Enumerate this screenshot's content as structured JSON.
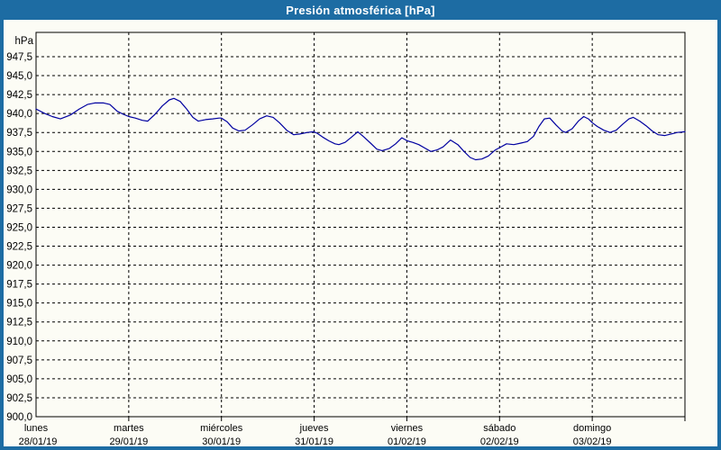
{
  "window": {
    "title": "Presión atmosférica [hPa]"
  },
  "colors": {
    "frame_blue": "#1d6ca3",
    "title_text": "#ffffff",
    "chart_background": "#fcfcf5",
    "line_navy": "#0000a0",
    "grid_black": "#000000",
    "text_black": "#000000"
  },
  "chart_data": {
    "type": "line",
    "title": "Presión atmosférica [hPa]",
    "xlabel": "",
    "ylabel": "hPa",
    "grid": {
      "style": "dashed",
      "horizontal": true,
      "vertical": true
    },
    "legend": "none",
    "y_axis": {
      "unit_label": "hPa",
      "min": 900,
      "max": 947.5,
      "tick_step": 2.5,
      "decimal_separator": ",",
      "tick_labels": [
        "947,5",
        "945,0",
        "942,5",
        "940,0",
        "937,5",
        "935,0",
        "932,5",
        "930,0",
        "927,5",
        "925,0",
        "922,5",
        "920,0",
        "917,5",
        "915,0",
        "912,5",
        "910,0",
        "907,5",
        "905,0",
        "902,5",
        "900,0"
      ]
    },
    "x_axis": {
      "range_hours": [
        0,
        168
      ],
      "days": [
        {
          "name": "lunes",
          "date": "28/01/19"
        },
        {
          "name": "martes",
          "date": "29/01/19"
        },
        {
          "name": "miércoles",
          "date": "30/01/19"
        },
        {
          "name": "jueves",
          "date": "31/01/19"
        },
        {
          "name": "viernes",
          "date": "01/02/19"
        },
        {
          "name": "sábado",
          "date": "02/02/19"
        },
        {
          "name": "domingo",
          "date": "03/02/19"
        }
      ]
    },
    "series": [
      {
        "name": "Presión atmosférica",
        "color": "#0000a0",
        "points_hour_hpa": [
          [
            0,
            940.6
          ],
          [
            2.3,
            940.0
          ],
          [
            4.2,
            939.6
          ],
          [
            6.3,
            939.3
          ],
          [
            8.9,
            939.8
          ],
          [
            11.2,
            940.6
          ],
          [
            13.3,
            941.2
          ],
          [
            15.2,
            941.4
          ],
          [
            17.5,
            941.4
          ],
          [
            19.1,
            941.2
          ],
          [
            21.0,
            940.3
          ],
          [
            22.6,
            939.9
          ],
          [
            24.0,
            939.6
          ],
          [
            25.7,
            939.4
          ],
          [
            27.5,
            939.1
          ],
          [
            28.9,
            939.0
          ],
          [
            30.8,
            939.9
          ],
          [
            32.7,
            941.0
          ],
          [
            34.5,
            941.8
          ],
          [
            35.7,
            942.0
          ],
          [
            37.3,
            941.6
          ],
          [
            39.0,
            940.6
          ],
          [
            40.6,
            939.5
          ],
          [
            42.0,
            939.0
          ],
          [
            43.9,
            939.2
          ],
          [
            45.7,
            939.3
          ],
          [
            47.4,
            939.4
          ],
          [
            48.0,
            939.4
          ],
          [
            49.5,
            938.9
          ],
          [
            50.9,
            938.1
          ],
          [
            52.5,
            937.7
          ],
          [
            54.1,
            937.8
          ],
          [
            56.0,
            938.5
          ],
          [
            57.9,
            939.3
          ],
          [
            59.7,
            939.7
          ],
          [
            61.4,
            939.5
          ],
          [
            63.0,
            938.8
          ],
          [
            64.9,
            937.8
          ],
          [
            66.7,
            937.2
          ],
          [
            68.3,
            937.3
          ],
          [
            70.2,
            937.5
          ],
          [
            71.9,
            937.6
          ],
          [
            72.8,
            937.4
          ],
          [
            74.2,
            936.9
          ],
          [
            75.8,
            936.4
          ],
          [
            77.4,
            936.0
          ],
          [
            78.4,
            935.9
          ],
          [
            80.0,
            936.2
          ],
          [
            81.7,
            936.9
          ],
          [
            83.3,
            937.6
          ],
          [
            84.9,
            936.9
          ],
          [
            86.6,
            936.1
          ],
          [
            88.2,
            935.3
          ],
          [
            89.6,
            935.1
          ],
          [
            91.5,
            935.4
          ],
          [
            93.1,
            936.0
          ],
          [
            94.7,
            936.8
          ],
          [
            96.1,
            936.4
          ],
          [
            97.5,
            936.2
          ],
          [
            99.1,
            935.9
          ],
          [
            100.8,
            935.4
          ],
          [
            102.2,
            935.0
          ],
          [
            103.8,
            935.2
          ],
          [
            105.4,
            935.6
          ],
          [
            107.3,
            936.5
          ],
          [
            109.2,
            935.9
          ],
          [
            110.8,
            935.0
          ],
          [
            112.4,
            934.2
          ],
          [
            113.8,
            933.9
          ],
          [
            115.4,
            934.0
          ],
          [
            117.1,
            934.4
          ],
          [
            118.9,
            935.2
          ],
          [
            120.0,
            935.5
          ],
          [
            121.8,
            936.0
          ],
          [
            123.7,
            935.9
          ],
          [
            125.5,
            936.1
          ],
          [
            127.2,
            936.3
          ],
          [
            128.8,
            937.0
          ],
          [
            130.2,
            938.3
          ],
          [
            131.6,
            939.3
          ],
          [
            133.0,
            939.4
          ],
          [
            134.6,
            938.5
          ],
          [
            136.2,
            937.7
          ],
          [
            137.1,
            937.5
          ],
          [
            138.8,
            938.0
          ],
          [
            140.4,
            939.0
          ],
          [
            141.8,
            939.6
          ],
          [
            143.0,
            939.3
          ],
          [
            144.0,
            938.8
          ],
          [
            145.3,
            938.3
          ],
          [
            147.0,
            937.8
          ],
          [
            148.6,
            937.5
          ],
          [
            150.2,
            937.8
          ],
          [
            151.9,
            938.6
          ],
          [
            153.5,
            939.3
          ],
          [
            154.6,
            939.5
          ],
          [
            156.3,
            939.0
          ],
          [
            157.9,
            938.4
          ],
          [
            159.5,
            937.7
          ],
          [
            161.1,
            937.2
          ],
          [
            162.8,
            937.1
          ],
          [
            164.4,
            937.3
          ],
          [
            166.0,
            937.5
          ],
          [
            168.0,
            937.6
          ]
        ]
      }
    ]
  }
}
